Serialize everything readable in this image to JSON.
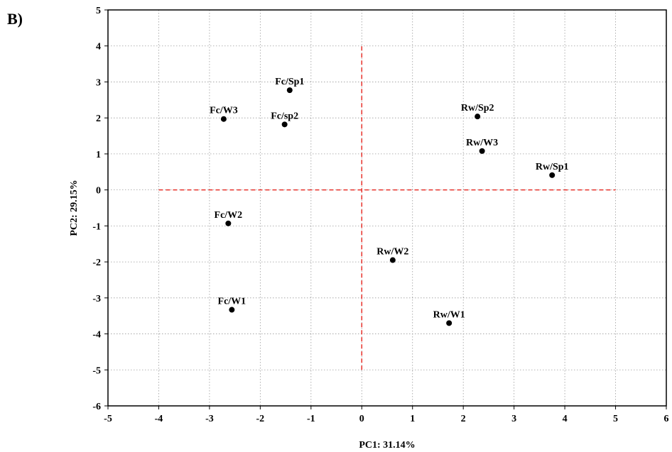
{
  "panel_label": "B)",
  "chart_data": {
    "type": "scatter",
    "xlabel": "PC1: 31.14%",
    "ylabel": "PC2: 29.15%",
    "xlim": [
      -5,
      6
    ],
    "ylim": [
      -6,
      5
    ],
    "xticks": [
      -5,
      -4,
      -3,
      -2,
      -1,
      0,
      1,
      2,
      3,
      4,
      5,
      6
    ],
    "yticks": [
      -6,
      -5,
      -4,
      -3,
      -2,
      -1,
      0,
      1,
      2,
      3,
      4,
      5
    ],
    "grid": true,
    "reference_lines": {
      "horizontal": {
        "y": 0,
        "x_from": -4,
        "x_to": 5
      },
      "vertical": {
        "x": 0,
        "y_from": -5,
        "y_to": 4
      },
      "color": "#e8302a"
    },
    "points": [
      {
        "label": "Fc/Sp1",
        "x": -1.42,
        "y": 2.77
      },
      {
        "label": "Fc/W3",
        "x": -2.72,
        "y": 1.97
      },
      {
        "label": "Fc/sp2",
        "x": -1.52,
        "y": 1.82
      },
      {
        "label": "Fc/W2",
        "x": -2.63,
        "y": -0.93
      },
      {
        "label": "Fc/W1",
        "x": -2.56,
        "y": -3.33
      },
      {
        "label": "Rw/Sp2",
        "x": 2.28,
        "y": 2.04
      },
      {
        "label": "Rw/W3",
        "x": 2.37,
        "y": 1.08
      },
      {
        "label": "Rw/Sp1",
        "x": 3.75,
        "y": 0.41
      },
      {
        "label": "Rw/W2",
        "x": 0.61,
        "y": -1.95
      },
      {
        "label": "Rw/W1",
        "x": 1.72,
        "y": -3.7
      }
    ],
    "marker_color": "#000000"
  }
}
